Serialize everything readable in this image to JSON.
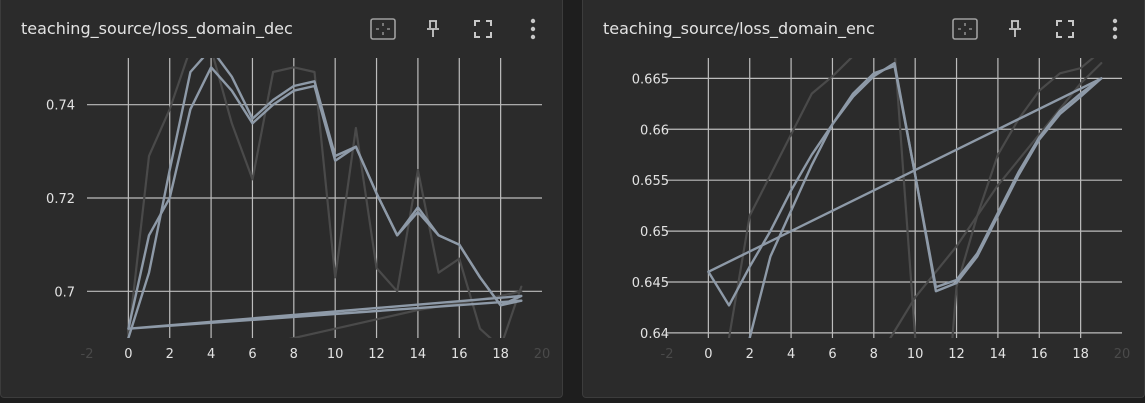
{
  "colors": {
    "background": "#1e1e1e",
    "card": "#2b2b2b",
    "grid": "#bdbdbd",
    "text": "#e3e3e3",
    "smoothed": "#8e9aa8",
    "raw": "#4a4a4a",
    "icon": "#a0a0a0"
  },
  "cards": [
    {
      "title": "teaching_source/loss_domain_dec",
      "toolbar": {
        "fit_icon": "fit-domain-icon",
        "pin_icon": "pin-icon",
        "fullscreen_icon": "fullscreen-icon",
        "more_icon": "more-vertical-icon"
      }
    },
    {
      "title": "teaching_source/loss_domain_enc",
      "toolbar": {
        "fit_icon": "fit-domain-icon",
        "pin_icon": "pin-icon",
        "fullscreen_icon": "fullscreen-icon",
        "more_icon": "more-vertical-icon"
      }
    }
  ],
  "chart_data": [
    {
      "type": "line",
      "title": "teaching_source/loss_domain_dec",
      "xlim": [
        -2,
        20
      ],
      "ylim": [
        0.69,
        0.75
      ],
      "x_ticks": [
        -2,
        0,
        2,
        4,
        6,
        8,
        10,
        12,
        14,
        16,
        18,
        20
      ],
      "x_tick_labels": [
        "-2",
        "0",
        "2",
        "4",
        "6",
        "8",
        "10",
        "12",
        "14",
        "16",
        "18",
        "20"
      ],
      "y_ticks": [
        0.7,
        0.72,
        0.74
      ],
      "y_tick_labels": [
        "0.7",
        "0.72",
        "0.74"
      ],
      "grid": true,
      "series": [
        {
          "style": "smoothed",
          "points": [
            [
              0,
              0.692
            ],
            [
              1,
              0.712
            ],
            [
              2,
              0.72
            ],
            [
              3,
              0.739
            ],
            [
              4,
              0.748
            ],
            [
              5,
              0.743
            ],
            [
              6,
              0.736
            ],
            [
              7,
              0.74
            ],
            [
              8,
              0.743
            ],
            [
              9,
              0.744
            ],
            [
              10,
              0.728
            ],
            [
              11,
              0.731
            ],
            [
              12,
              0.721
            ],
            [
              13,
              0.712
            ],
            [
              14,
              0.718
            ],
            [
              15,
              0.712
            ],
            [
              16,
              0.71
            ],
            [
              17,
              0.703
            ],
            [
              18,
              0.697
            ],
            [
              19,
              0.699
            ],
            [
              0,
              0.692
            ],
            [
              19,
              0.698
            ]
          ]
        },
        {
          "style": "smoothed",
          "points": [
            [
              0,
              0.69
            ],
            [
              1,
              0.704
            ],
            [
              2,
              0.726
            ],
            [
              3,
              0.747
            ],
            [
              4,
              0.752
            ],
            [
              5,
              0.746
            ],
            [
              6,
              0.737
            ],
            [
              7,
              0.741
            ],
            [
              8,
              0.744
            ],
            [
              9,
              0.745
            ],
            [
              10,
              0.729
            ],
            [
              11,
              0.731
            ],
            [
              12,
              0.721
            ],
            [
              13,
              0.712
            ],
            [
              14,
              0.717
            ],
            [
              15,
              0.712
            ],
            [
              16,
              0.71
            ],
            [
              17,
              0.703
            ],
            [
              18,
              0.697
            ],
            [
              19,
              0.698
            ]
          ]
        },
        {
          "style": "raw",
          "points": [
            [
              0,
              0.69
            ],
            [
              1,
              0.729
            ],
            [
              2,
              0.739
            ],
            [
              3,
              0.752
            ],
            [
              4,
              0.752
            ],
            [
              5,
              0.736
            ],
            [
              6,
              0.724
            ],
            [
              7,
              0.747
            ],
            [
              8,
              0.748
            ],
            [
              9,
              0.747
            ],
            [
              10,
              0.703
            ],
            [
              11,
              0.735
            ],
            [
              12,
              0.705
            ],
            [
              13,
              0.7
            ],
            [
              14,
              0.726
            ],
            [
              15,
              0.704
            ],
            [
              16,
              0.707
            ],
            [
              17,
              0.692
            ],
            [
              18,
              0.688
            ],
            [
              19,
              0.701
            ]
          ]
        },
        {
          "style": "raw",
          "points": [
            [
              7,
              0.689
            ],
            [
              10,
              0.692
            ],
            [
              14,
              0.696
            ],
            [
              18,
              0.699
            ],
            [
              19,
              0.7
            ]
          ]
        }
      ]
    },
    {
      "type": "line",
      "title": "teaching_source/loss_domain_enc",
      "xlim": [
        -2,
        20
      ],
      "ylim": [
        0.6395,
        0.667
      ],
      "x_ticks": [
        -2,
        0,
        2,
        4,
        6,
        8,
        10,
        12,
        14,
        16,
        18,
        20
      ],
      "x_tick_labels": [
        "-2",
        "0",
        "2",
        "4",
        "6",
        "8",
        "10",
        "12",
        "14",
        "16",
        "18",
        "20"
      ],
      "y_ticks": [
        0.64,
        0.645,
        0.65,
        0.655,
        0.66,
        0.665
      ],
      "y_tick_labels": [
        "0.64",
        "0.645",
        "0.65",
        "0.655",
        "0.66",
        "0.665"
      ],
      "grid": true,
      "series": [
        {
          "style": "smoothed",
          "points": [
            [
              0,
              0.646
            ],
            [
              1,
              0.6427
            ],
            [
              2,
              0.6465
            ],
            [
              3,
              0.65
            ],
            [
              4,
              0.654
            ],
            [
              5,
              0.6575
            ],
            [
              6,
              0.6605
            ],
            [
              7,
              0.6632
            ],
            [
              8,
              0.6652
            ],
            [
              9,
              0.6665
            ],
            [
              10,
              0.6555
            ],
            [
              11,
              0.6441
            ],
            [
              12,
              0.6449
            ],
            [
              13,
              0.6475
            ],
            [
              14,
              0.6515
            ],
            [
              15,
              0.6555
            ],
            [
              16,
              0.659
            ],
            [
              17,
              0.6615
            ],
            [
              18,
              0.6632
            ],
            [
              19,
              0.665
            ],
            [
              0,
              0.646
            ],
            [
              19,
              0.665
            ]
          ]
        },
        {
          "style": "smoothed",
          "points": [
            [
              2,
              0.6395
            ],
            [
              3,
              0.6475
            ],
            [
              4,
              0.652
            ],
            [
              5,
              0.6565
            ],
            [
              6,
              0.6605
            ],
            [
              7,
              0.6635
            ],
            [
              8,
              0.6655
            ],
            [
              9,
              0.6662
            ],
            [
              10,
              0.6555
            ],
            [
              11,
              0.6445
            ],
            [
              12,
              0.6452
            ],
            [
              13,
              0.6478
            ],
            [
              14,
              0.6518
            ],
            [
              15,
              0.6558
            ],
            [
              16,
              0.6592
            ],
            [
              17,
              0.6618
            ],
            [
              18,
              0.6635
            ],
            [
              19,
              0.665
            ]
          ]
        },
        {
          "style": "raw",
          "points": [
            [
              1,
              0.6395
            ],
            [
              2,
              0.6515
            ],
            [
              3,
              0.6555
            ],
            [
              4,
              0.6595
            ],
            [
              5,
              0.6635
            ],
            [
              6,
              0.6652
            ],
            [
              7,
              0.6672
            ],
            [
              8,
              0.6676
            ],
            [
              9,
              0.6678
            ],
            [
              10,
              0.6395
            ]
          ]
        },
        {
          "style": "raw",
          "points": [
            [
              11.8,
              0.6395
            ],
            [
              12,
              0.6445
            ],
            [
              13,
              0.6515
            ],
            [
              14,
              0.6575
            ],
            [
              15,
              0.661
            ],
            [
              16,
              0.6638
            ],
            [
              17,
              0.6655
            ],
            [
              18,
              0.666
            ],
            [
              19,
              0.6677
            ]
          ]
        },
        {
          "style": "raw",
          "points": [
            [
              8.8,
              0.6395
            ],
            [
              10,
              0.6435
            ],
            [
              12,
              0.6485
            ],
            [
              14,
              0.6545
            ],
            [
              16,
              0.6595
            ],
            [
              18,
              0.6645
            ],
            [
              19,
              0.6665
            ]
          ]
        }
      ]
    }
  ]
}
